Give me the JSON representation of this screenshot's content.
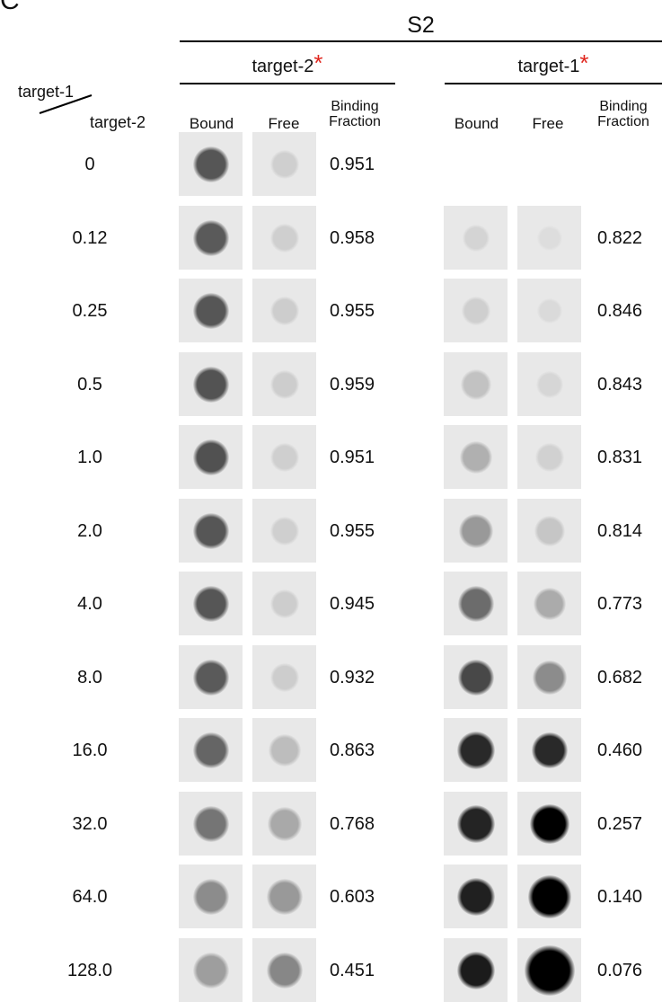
{
  "panel_letter": "C",
  "title": "S2",
  "groups": [
    {
      "label": "target-2",
      "star": "*"
    },
    {
      "label": "target-1",
      "star": "*"
    }
  ],
  "row_header_top": "target-1",
  "row_header_bottom": "target-2",
  "columns": {
    "bound": "Bound",
    "free": "Free",
    "fraction_line1": "Binding",
    "fraction_line2": "Fraction"
  },
  "rows": [
    {
      "ratio": "0",
      "t2_fraction": "0.951",
      "t1_fraction": ""
    },
    {
      "ratio": "0.12",
      "t2_fraction": "0.958",
      "t1_fraction": "0.822"
    },
    {
      "ratio": "0.25",
      "t2_fraction": "0.955",
      "t1_fraction": "0.846"
    },
    {
      "ratio": "0.5",
      "t2_fraction": "0.959",
      "t1_fraction": "0.843"
    },
    {
      "ratio": "1.0",
      "t2_fraction": "0.951",
      "t1_fraction": "0.831"
    },
    {
      "ratio": "2.0",
      "t2_fraction": "0.955",
      "t1_fraction": "0.814"
    },
    {
      "ratio": "4.0",
      "t2_fraction": "0.945",
      "t1_fraction": "0.773"
    },
    {
      "ratio": "8.0",
      "t2_fraction": "0.932",
      "t1_fraction": "0.682"
    },
    {
      "ratio": "16.0",
      "t2_fraction": "0.863",
      "t1_fraction": "0.460"
    },
    {
      "ratio": "32.0",
      "t2_fraction": "0.768",
      "t1_fraction": "0.257"
    },
    {
      "ratio": "64.0",
      "t2_fraction": "0.603",
      "t1_fraction": "0.140"
    },
    {
      "ratio": "128.0",
      "t2_fraction": "0.451",
      "t1_fraction": "0.076"
    }
  ]
}
